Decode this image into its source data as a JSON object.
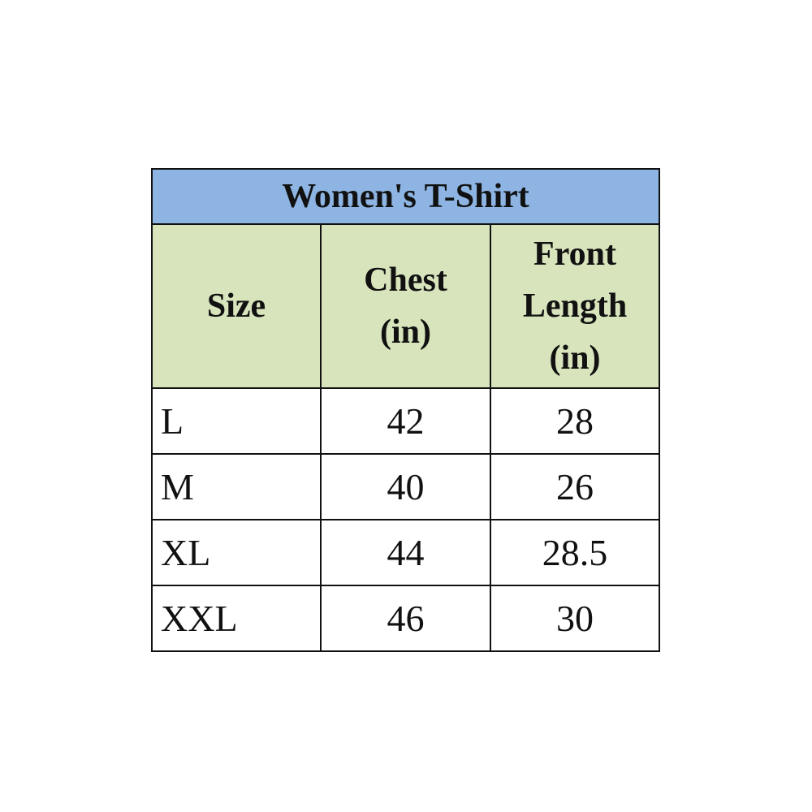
{
  "table": {
    "title": "Women's T-Shirt",
    "headers": {
      "size": "Size",
      "chest_l1": "Chest",
      "chest_l2": "(in)",
      "front_l1": "Front",
      "front_l2": "Length",
      "front_l3": "(in)"
    },
    "rows": [
      {
        "size": "L",
        "chest": "42",
        "front_length": "28"
      },
      {
        "size": "M",
        "chest": "40",
        "front_length": "26"
      },
      {
        "size": "XL",
        "chest": "44",
        "front_length": "28.5"
      },
      {
        "size": "XXL",
        "chest": "46",
        "front_length": "30"
      }
    ]
  },
  "colors": {
    "title_bg": "#8db4e2",
    "header_bg": "#d8e4bc"
  }
}
